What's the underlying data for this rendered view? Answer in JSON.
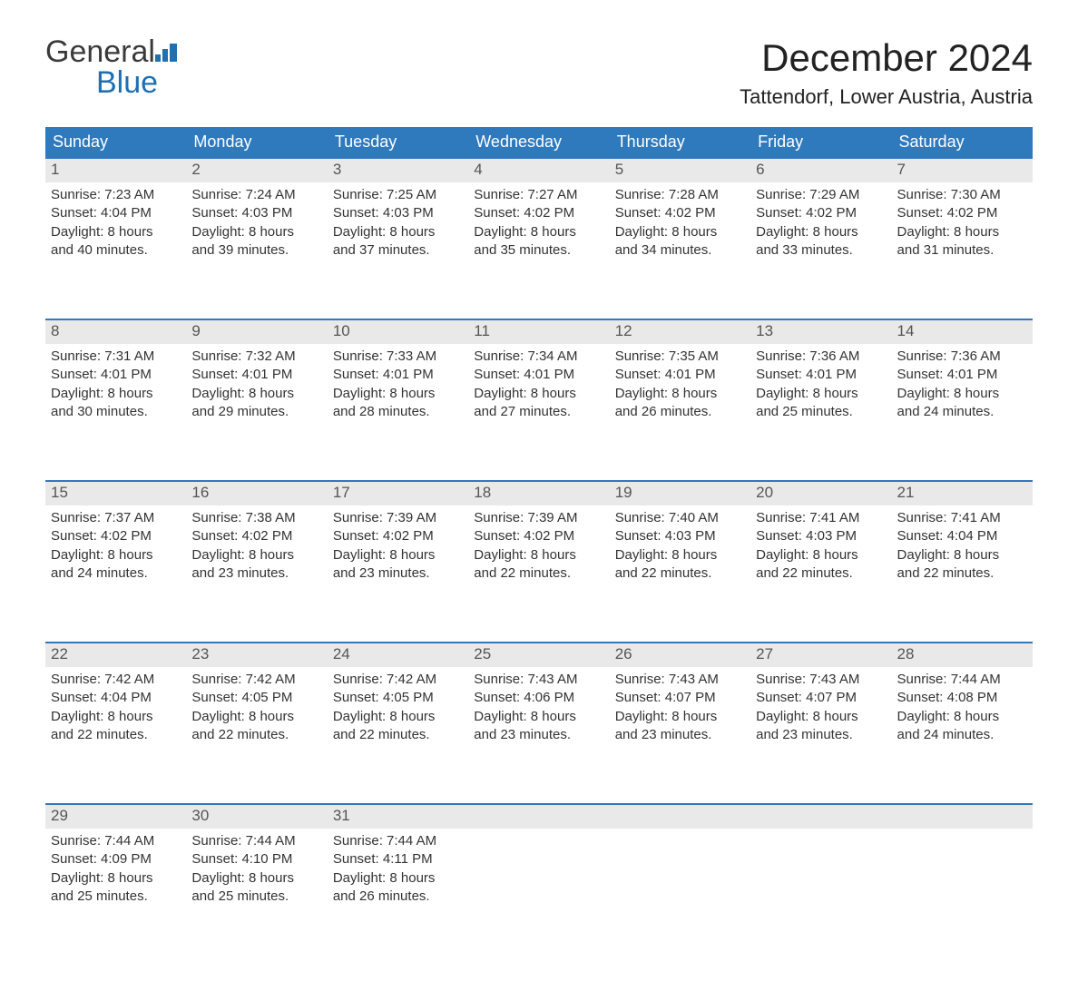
{
  "logo": {
    "line1": "General",
    "line2": "Blue"
  },
  "title": "December 2024",
  "location": "Tattendorf, Lower Austria, Austria",
  "colors": {
    "header_bg": "#2f79bd",
    "header_text": "#ffffff",
    "daynum_bg": "#e9e9e9",
    "daynum_text": "#555555",
    "rule": "#2f79bd",
    "body_text": "#333333",
    "logo_gray": "#3a3a3a",
    "logo_blue": "#1f6fb2",
    "page_bg": "#ffffff"
  },
  "typography": {
    "title_fontsize": 42,
    "location_fontsize": 22,
    "dayheader_fontsize": 18,
    "cell_fontsize": 15,
    "logo_fontsize": 34
  },
  "day_headers": [
    "Sunday",
    "Monday",
    "Tuesday",
    "Wednesday",
    "Thursday",
    "Friday",
    "Saturday"
  ],
  "weeks": [
    [
      {
        "n": "1",
        "sr": "Sunrise: 7:23 AM",
        "ss": "Sunset: 4:04 PM",
        "d1": "Daylight: 8 hours",
        "d2": "and 40 minutes."
      },
      {
        "n": "2",
        "sr": "Sunrise: 7:24 AM",
        "ss": "Sunset: 4:03 PM",
        "d1": "Daylight: 8 hours",
        "d2": "and 39 minutes."
      },
      {
        "n": "3",
        "sr": "Sunrise: 7:25 AM",
        "ss": "Sunset: 4:03 PM",
        "d1": "Daylight: 8 hours",
        "d2": "and 37 minutes."
      },
      {
        "n": "4",
        "sr": "Sunrise: 7:27 AM",
        "ss": "Sunset: 4:02 PM",
        "d1": "Daylight: 8 hours",
        "d2": "and 35 minutes."
      },
      {
        "n": "5",
        "sr": "Sunrise: 7:28 AM",
        "ss": "Sunset: 4:02 PM",
        "d1": "Daylight: 8 hours",
        "d2": "and 34 minutes."
      },
      {
        "n": "6",
        "sr": "Sunrise: 7:29 AM",
        "ss": "Sunset: 4:02 PM",
        "d1": "Daylight: 8 hours",
        "d2": "and 33 minutes."
      },
      {
        "n": "7",
        "sr": "Sunrise: 7:30 AM",
        "ss": "Sunset: 4:02 PM",
        "d1": "Daylight: 8 hours",
        "d2": "and 31 minutes."
      }
    ],
    [
      {
        "n": "8",
        "sr": "Sunrise: 7:31 AM",
        "ss": "Sunset: 4:01 PM",
        "d1": "Daylight: 8 hours",
        "d2": "and 30 minutes."
      },
      {
        "n": "9",
        "sr": "Sunrise: 7:32 AM",
        "ss": "Sunset: 4:01 PM",
        "d1": "Daylight: 8 hours",
        "d2": "and 29 minutes."
      },
      {
        "n": "10",
        "sr": "Sunrise: 7:33 AM",
        "ss": "Sunset: 4:01 PM",
        "d1": "Daylight: 8 hours",
        "d2": "and 28 minutes."
      },
      {
        "n": "11",
        "sr": "Sunrise: 7:34 AM",
        "ss": "Sunset: 4:01 PM",
        "d1": "Daylight: 8 hours",
        "d2": "and 27 minutes."
      },
      {
        "n": "12",
        "sr": "Sunrise: 7:35 AM",
        "ss": "Sunset: 4:01 PM",
        "d1": "Daylight: 8 hours",
        "d2": "and 26 minutes."
      },
      {
        "n": "13",
        "sr": "Sunrise: 7:36 AM",
        "ss": "Sunset: 4:01 PM",
        "d1": "Daylight: 8 hours",
        "d2": "and 25 minutes."
      },
      {
        "n": "14",
        "sr": "Sunrise: 7:36 AM",
        "ss": "Sunset: 4:01 PM",
        "d1": "Daylight: 8 hours",
        "d2": "and 24 minutes."
      }
    ],
    [
      {
        "n": "15",
        "sr": "Sunrise: 7:37 AM",
        "ss": "Sunset: 4:02 PM",
        "d1": "Daylight: 8 hours",
        "d2": "and 24 minutes."
      },
      {
        "n": "16",
        "sr": "Sunrise: 7:38 AM",
        "ss": "Sunset: 4:02 PM",
        "d1": "Daylight: 8 hours",
        "d2": "and 23 minutes."
      },
      {
        "n": "17",
        "sr": "Sunrise: 7:39 AM",
        "ss": "Sunset: 4:02 PM",
        "d1": "Daylight: 8 hours",
        "d2": "and 23 minutes."
      },
      {
        "n": "18",
        "sr": "Sunrise: 7:39 AM",
        "ss": "Sunset: 4:02 PM",
        "d1": "Daylight: 8 hours",
        "d2": "and 22 minutes."
      },
      {
        "n": "19",
        "sr": "Sunrise: 7:40 AM",
        "ss": "Sunset: 4:03 PM",
        "d1": "Daylight: 8 hours",
        "d2": "and 22 minutes."
      },
      {
        "n": "20",
        "sr": "Sunrise: 7:41 AM",
        "ss": "Sunset: 4:03 PM",
        "d1": "Daylight: 8 hours",
        "d2": "and 22 minutes."
      },
      {
        "n": "21",
        "sr": "Sunrise: 7:41 AM",
        "ss": "Sunset: 4:04 PM",
        "d1": "Daylight: 8 hours",
        "d2": "and 22 minutes."
      }
    ],
    [
      {
        "n": "22",
        "sr": "Sunrise: 7:42 AM",
        "ss": "Sunset: 4:04 PM",
        "d1": "Daylight: 8 hours",
        "d2": "and 22 minutes."
      },
      {
        "n": "23",
        "sr": "Sunrise: 7:42 AM",
        "ss": "Sunset: 4:05 PM",
        "d1": "Daylight: 8 hours",
        "d2": "and 22 minutes."
      },
      {
        "n": "24",
        "sr": "Sunrise: 7:42 AM",
        "ss": "Sunset: 4:05 PM",
        "d1": "Daylight: 8 hours",
        "d2": "and 22 minutes."
      },
      {
        "n": "25",
        "sr": "Sunrise: 7:43 AM",
        "ss": "Sunset: 4:06 PM",
        "d1": "Daylight: 8 hours",
        "d2": "and 23 minutes."
      },
      {
        "n": "26",
        "sr": "Sunrise: 7:43 AM",
        "ss": "Sunset: 4:07 PM",
        "d1": "Daylight: 8 hours",
        "d2": "and 23 minutes."
      },
      {
        "n": "27",
        "sr": "Sunrise: 7:43 AM",
        "ss": "Sunset: 4:07 PM",
        "d1": "Daylight: 8 hours",
        "d2": "and 23 minutes."
      },
      {
        "n": "28",
        "sr": "Sunrise: 7:44 AM",
        "ss": "Sunset: 4:08 PM",
        "d1": "Daylight: 8 hours",
        "d2": "and 24 minutes."
      }
    ],
    [
      {
        "n": "29",
        "sr": "Sunrise: 7:44 AM",
        "ss": "Sunset: 4:09 PM",
        "d1": "Daylight: 8 hours",
        "d2": "and 25 minutes."
      },
      {
        "n": "30",
        "sr": "Sunrise: 7:44 AM",
        "ss": "Sunset: 4:10 PM",
        "d1": "Daylight: 8 hours",
        "d2": "and 25 minutes."
      },
      {
        "n": "31",
        "sr": "Sunrise: 7:44 AM",
        "ss": "Sunset: 4:11 PM",
        "d1": "Daylight: 8 hours",
        "d2": "and 26 minutes."
      },
      null,
      null,
      null,
      null
    ]
  ]
}
